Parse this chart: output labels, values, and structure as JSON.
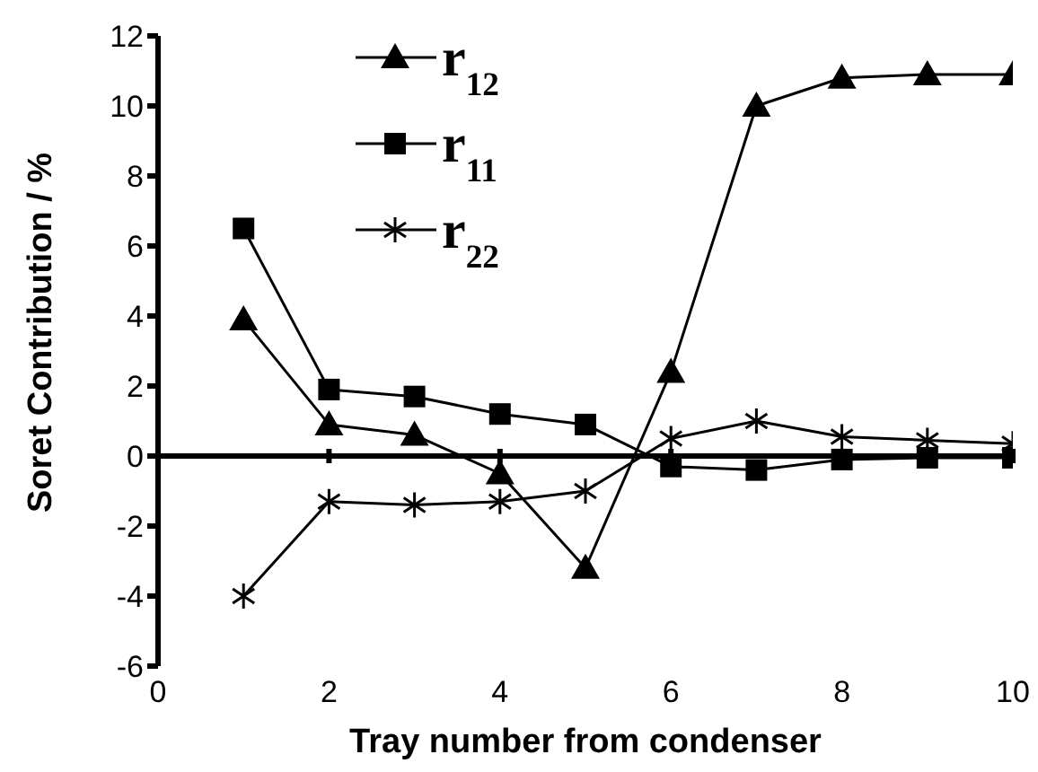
{
  "chart_data": {
    "type": "line",
    "xlabel": "Tray number from condenser",
    "ylabel": "Soret Contribution / %",
    "x": [
      1,
      2,
      3,
      4,
      5,
      6,
      7,
      8,
      9,
      10
    ],
    "series": [
      {
        "name": "r$_{12}$",
        "color": "#000000",
        "marker": "triangle",
        "values": [
          3.9,
          0.9,
          0.6,
          -0.5,
          -3.2,
          2.4,
          10,
          10.8,
          10.9,
          10.9
        ]
      },
      {
        "name": "r$_{11}$",
        "color": "#000000",
        "marker": "square",
        "values": [
          6.5,
          1.9,
          1.7,
          1.2,
          0.9,
          -0.3,
          -0.4,
          -0.1,
          -0.05,
          -0.05
        ]
      },
      {
        "name": "r$_{22}$",
        "color": "#000000",
        "marker": "cross",
        "values": [
          -4,
          -1.3,
          -1.4,
          -1.3,
          -1,
          0.5,
          1,
          0.55,
          0.45,
          0.35
        ]
      }
    ],
    "xlim": [
      0,
      10
    ],
    "xticks": [
      0,
      2,
      4,
      6,
      8,
      10
    ],
    "ylim": [
      -6,
      12
    ],
    "yticks": [
      -6,
      -4,
      -2,
      0,
      2,
      4,
      6,
      8,
      10,
      12
    ],
    "legend": "top left"
  }
}
